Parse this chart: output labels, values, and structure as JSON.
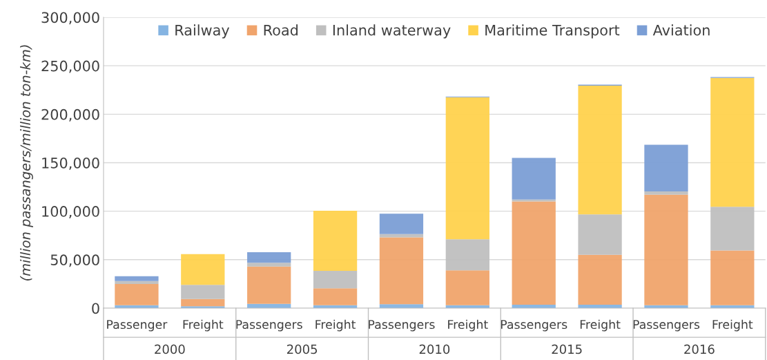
{
  "chart_data": {
    "type": "bar",
    "stacked": true,
    "ylabel": "(million passangers/million ton-km)",
    "categories": [
      "Passenger",
      "Freight",
      "Passengers",
      "Freight",
      "Passengers",
      "Freight",
      "Passengers",
      "Freight",
      "Passengers",
      "Freight"
    ],
    "annotations": [
      "2000",
      "2005",
      "2010",
      "2015",
      "2016"
    ],
    "series": [
      {
        "name": "Railway",
        "color": "#85b4e2",
        "values": [
          3000,
          2000,
          4500,
          3000,
          4000,
          3000,
          3500,
          3500,
          3000,
          3000
        ]
      },
      {
        "name": "Road",
        "color": "#f0a46c",
        "values": [
          22000,
          7500,
          38500,
          17500,
          69000,
          36000,
          106500,
          51500,
          114000,
          56500
        ]
      },
      {
        "name": "Inland waterway",
        "color": "#bfbfbf",
        "values": [
          3000,
          14500,
          3800,
          18000,
          3500,
          32000,
          2000,
          41800,
          3500,
          45000
        ]
      },
      {
        "name": "Maritime Transport",
        "color": "#ffd24d",
        "values": [
          0,
          31700,
          0,
          62000,
          0,
          146500,
          0,
          132700,
          0,
          133000
        ]
      },
      {
        "name": "Aviation",
        "color": "#7b9ed5",
        "values": [
          5000,
          0,
          10900,
          0,
          21000,
          700,
          43000,
          1000,
          48000,
          800
        ]
      }
    ],
    "ylim": [
      0,
      300000
    ],
    "yticks": [
      {
        "value": 0,
        "label": "0"
      },
      {
        "value": 50000,
        "label": "50,000"
      },
      {
        "value": 100000,
        "label": "100,000"
      },
      {
        "value": 150000,
        "label": "150,000"
      },
      {
        "value": 200000,
        "label": "200,000"
      },
      {
        "value": 250000,
        "label": "250,000"
      },
      {
        "value": 300000,
        "label": "300,000"
      }
    ],
    "grid": "y",
    "legend": "top"
  }
}
